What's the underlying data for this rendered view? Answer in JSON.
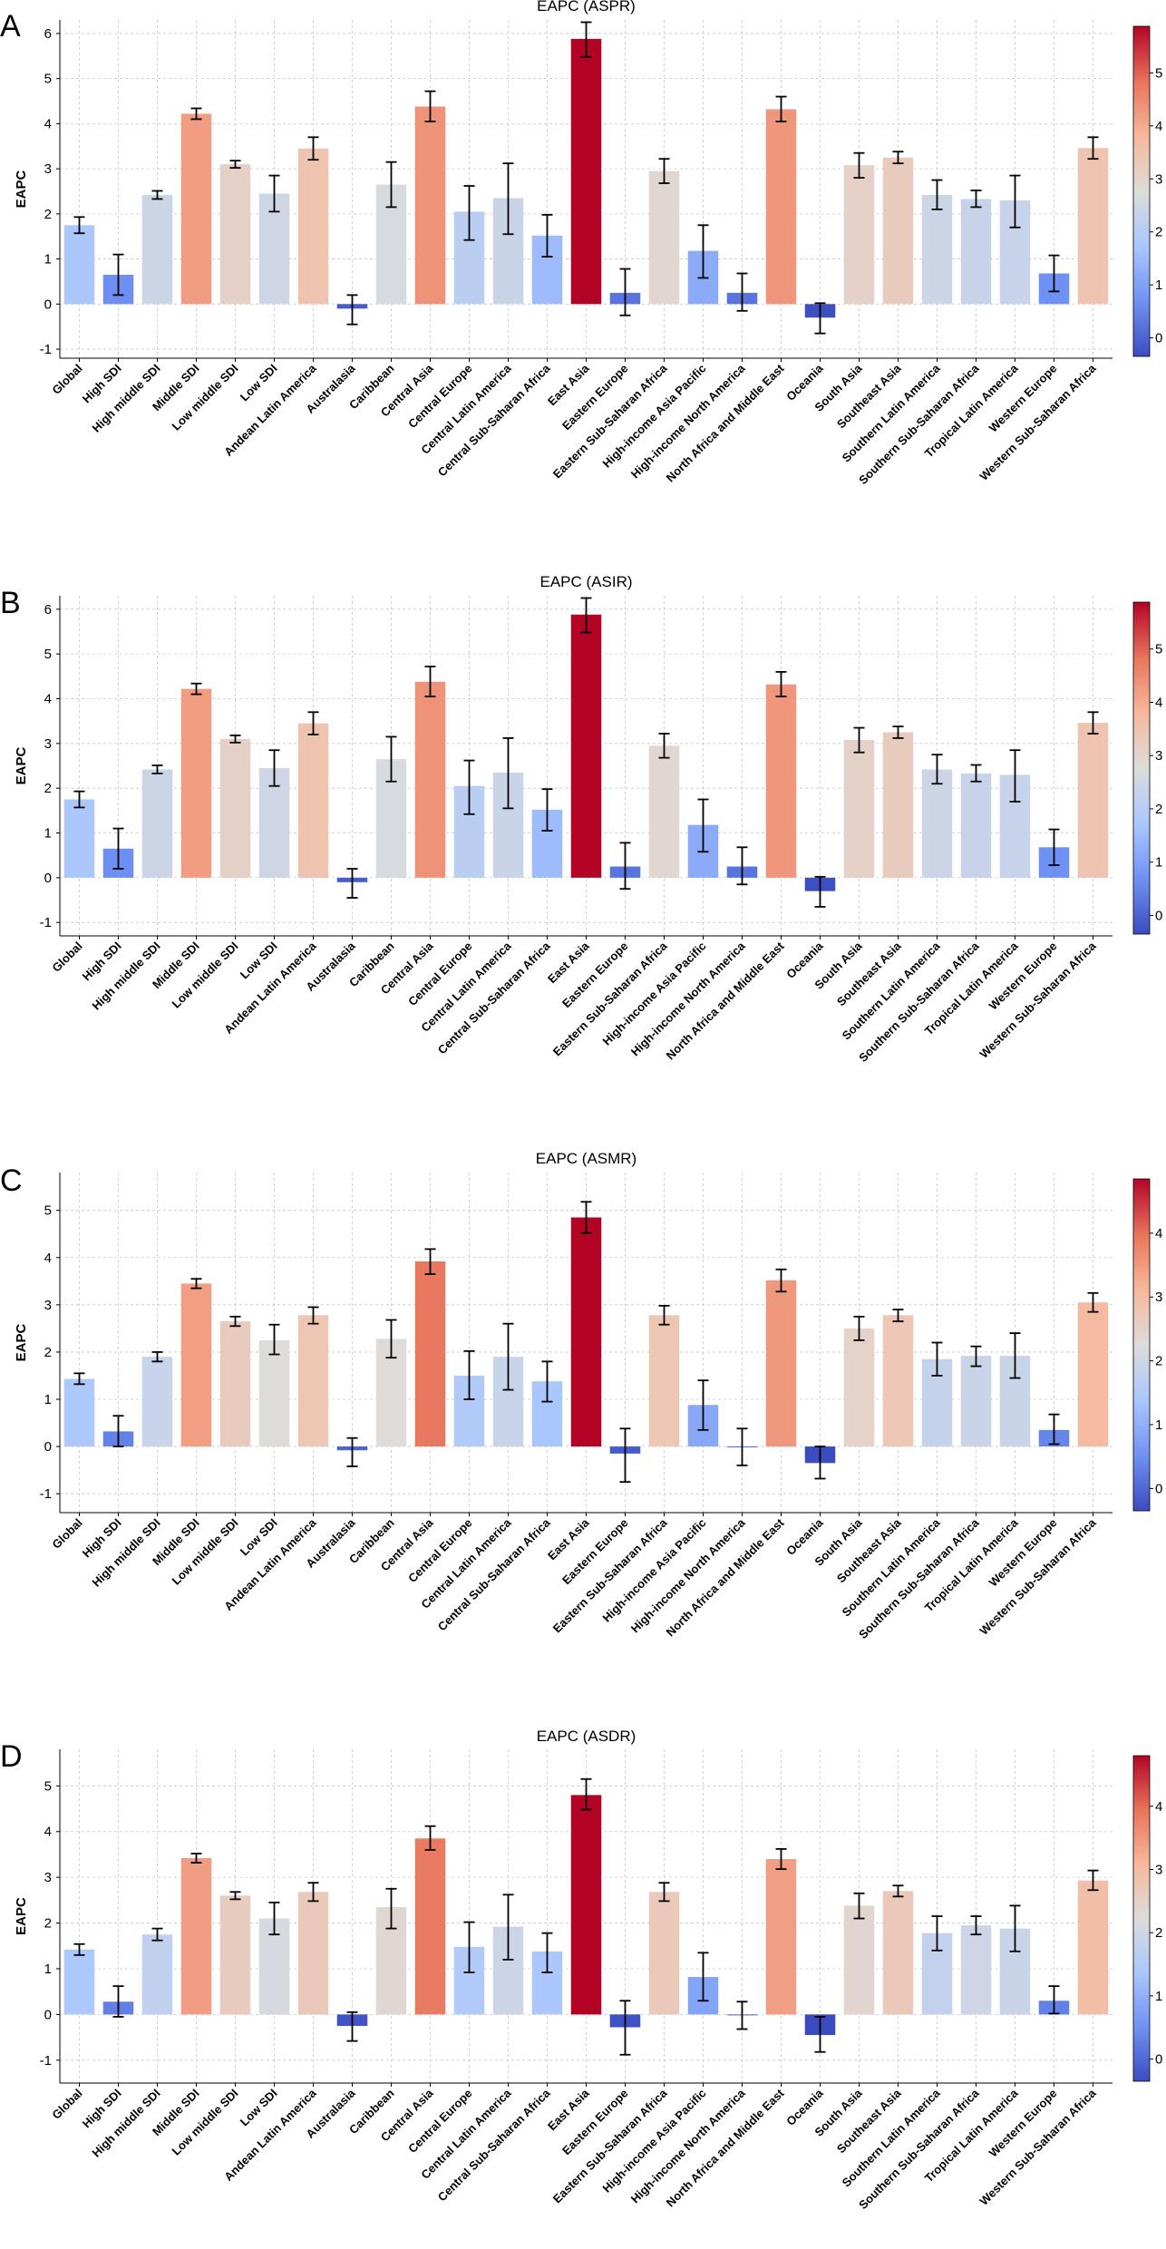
{
  "figure": {
    "panels": [
      "A",
      "B",
      "C",
      "D"
    ]
  },
  "colormap": {
    "stops": [
      "#3b4cc0",
      "#6f92f3",
      "#aac7fd",
      "#dddcdb",
      "#f7b89c",
      "#e7745b",
      "#b40426"
    ]
  },
  "chart_data": [
    {
      "type": "bar",
      "panel_letter": "A",
      "title": "EAPC (ASPR)",
      "xlabel": "",
      "ylabel": "EAPC",
      "ylim": [
        -1.2,
        6.3
      ],
      "yticks": [
        -1,
        0,
        1,
        2,
        3,
        4,
        5,
        6
      ],
      "grid": true,
      "categories": [
        "Global",
        "High SDI",
        "High middle SDI",
        "Middle SDI",
        "Low middle SDI",
        "Low SDI",
        "Andean Latin America",
        "Australasia",
        "Caribbean",
        "Central Asia",
        "Central Europe",
        "Central Latin America",
        "Central Sub-Saharan Africa",
        "East Asia",
        "Eastern Europe",
        "Eastern Sub-Saharan Africa",
        "High-income Asia Pacific",
        "High-income North America",
        "North Africa and Middle East",
        "Oceania",
        "South Asia",
        "Southeast Asia",
        "Southern Latin America",
        "Southern Sub-Saharan Africa",
        "Tropical Latin America",
        "Western Europe",
        "Western Sub-Saharan Africa"
      ],
      "values": [
        1.75,
        0.65,
        2.42,
        4.22,
        3.1,
        2.45,
        3.45,
        -0.1,
        2.65,
        4.38,
        2.05,
        2.35,
        1.52,
        5.88,
        0.25,
        2.95,
        1.18,
        0.25,
        4.32,
        -0.3,
        3.08,
        3.25,
        2.42,
        2.33,
        2.3,
        0.68,
        3.46
      ],
      "lower": [
        1.57,
        0.2,
        2.33,
        4.1,
        3.02,
        2.05,
        3.2,
        -0.45,
        2.15,
        4.05,
        1.42,
        1.55,
        1.05,
        5.48,
        -0.25,
        2.68,
        0.58,
        -0.15,
        4.05,
        -0.65,
        2.8,
        3.12,
        2.1,
        2.15,
        1.7,
        0.28,
        3.22
      ],
      "upper": [
        1.93,
        1.1,
        2.51,
        4.34,
        3.18,
        2.85,
        3.7,
        0.2,
        3.15,
        4.72,
        2.62,
        3.12,
        1.98,
        6.25,
        0.78,
        3.22,
        1.75,
        0.68,
        4.6,
        0.02,
        3.35,
        3.38,
        2.75,
        2.52,
        2.85,
        1.08,
        3.7
      ],
      "colorbar_max": 5.88,
      "colorbar_ticks": [
        0,
        1,
        2,
        3,
        4,
        5
      ],
      "colorbar_tick_labels": [
        "0",
        "1",
        "2",
        "3",
        "4",
        "5"
      ]
    },
    {
      "type": "bar",
      "panel_letter": "B",
      "title": "EAPC (ASIR)",
      "xlabel": "",
      "ylabel": "EAPC",
      "ylim": [
        -1.3,
        6.3
      ],
      "yticks": [
        -1,
        0,
        1,
        2,
        3,
        4,
        5,
        6
      ],
      "grid": true,
      "categories": [
        "Global",
        "High SDI",
        "High middle SDI",
        "Middle SDI",
        "Low middle SDI",
        "Low SDI",
        "Andean Latin America",
        "Australasia",
        "Caribbean",
        "Central Asia",
        "Central Europe",
        "Central Latin America",
        "Central Sub-Saharan Africa",
        "East Asia",
        "Eastern Europe",
        "Eastern Sub-Saharan Africa",
        "High-income Asia Pacific",
        "High-income North America",
        "North Africa and Middle East",
        "Oceania",
        "South Asia",
        "Southeast Asia",
        "Southern Latin America",
        "Southern Sub-Saharan Africa",
        "Tropical Latin America",
        "Western Europe",
        "Western Sub-Saharan Africa"
      ],
      "values": [
        1.75,
        0.65,
        2.42,
        4.22,
        3.1,
        2.45,
        3.45,
        -0.1,
        2.65,
        4.38,
        2.05,
        2.35,
        1.52,
        5.88,
        0.25,
        2.95,
        1.18,
        0.25,
        4.32,
        -0.3,
        3.08,
        3.25,
        2.42,
        2.33,
        2.3,
        0.68,
        3.46
      ],
      "lower": [
        1.57,
        0.2,
        2.33,
        4.1,
        3.02,
        2.05,
        3.2,
        -0.45,
        2.15,
        4.05,
        1.42,
        1.55,
        1.05,
        5.48,
        -0.25,
        2.68,
        0.58,
        -0.15,
        4.05,
        -0.65,
        2.8,
        3.12,
        2.1,
        2.15,
        1.7,
        0.28,
        3.22
      ],
      "upper": [
        1.93,
        1.1,
        2.51,
        4.34,
        3.18,
        2.85,
        3.7,
        0.2,
        3.15,
        4.72,
        2.62,
        3.12,
        1.98,
        6.25,
        0.78,
        3.22,
        1.75,
        0.68,
        4.6,
        0.02,
        3.35,
        3.38,
        2.75,
        2.52,
        2.85,
        1.08,
        3.7
      ],
      "colorbar_max": 5.88,
      "colorbar_ticks": [
        0,
        1,
        2,
        3,
        4,
        5
      ],
      "colorbar_tick_labels": [
        "0",
        "1",
        "2",
        "3",
        "4",
        "5"
      ]
    },
    {
      "type": "bar",
      "panel_letter": "C",
      "title": "EAPC (ASMR)",
      "xlabel": "",
      "ylabel": "EAPC",
      "ylim": [
        -1.4,
        5.8
      ],
      "yticks": [
        -1,
        0,
        1,
        2,
        3,
        4,
        5
      ],
      "grid": true,
      "categories": [
        "Global",
        "High SDI",
        "High middle SDI",
        "Middle SDI",
        "Low middle SDI",
        "Low SDI",
        "Andean Latin America",
        "Australasia",
        "Caribbean",
        "Central Asia",
        "Central Europe",
        "Central Latin America",
        "Central Sub-Saharan Africa",
        "East Asia",
        "Eastern Europe",
        "Eastern Sub-Saharan Africa",
        "High-income Asia Pacific",
        "High-income North America",
        "North Africa and Middle East",
        "Oceania",
        "South Asia",
        "Southeast Asia",
        "Southern Latin America",
        "Southern Sub-Saharan Africa",
        "Tropical Latin America",
        "Western Europe",
        "Western Sub-Saharan Africa"
      ],
      "values": [
        1.43,
        0.32,
        1.9,
        3.45,
        2.65,
        2.25,
        2.78,
        -0.08,
        2.28,
        3.92,
        1.5,
        1.9,
        1.38,
        4.85,
        -0.15,
        2.78,
        0.88,
        0.0,
        3.52,
        -0.35,
        2.5,
        2.78,
        1.85,
        1.92,
        1.92,
        0.35,
        3.05
      ],
      "lower": [
        1.32,
        0.0,
        1.8,
        3.35,
        2.55,
        1.95,
        2.6,
        -0.42,
        1.88,
        3.65,
        1.0,
        1.2,
        0.95,
        4.52,
        -0.75,
        2.58,
        0.35,
        -0.4,
        3.28,
        -0.68,
        2.25,
        2.65,
        1.5,
        1.7,
        1.45,
        0.05,
        2.85
      ],
      "upper": [
        1.55,
        0.65,
        2.0,
        3.55,
        2.75,
        2.58,
        2.95,
        0.18,
        2.68,
        4.18,
        2.02,
        2.6,
        1.8,
        5.18,
        0.38,
        2.98,
        1.4,
        0.38,
        3.75,
        0.0,
        2.75,
        2.9,
        2.2,
        2.12,
        2.4,
        0.68,
        3.25
      ],
      "colorbar_max": 4.85,
      "colorbar_ticks": [
        0,
        1,
        2,
        3,
        4
      ],
      "colorbar_tick_labels": [
        "0",
        "1",
        "2",
        "3",
        "4"
      ]
    },
    {
      "type": "bar",
      "panel_letter": "D",
      "title": "EAPC (ASDR)",
      "xlabel": "",
      "ylabel": "EAPC",
      "ylim": [
        -1.5,
        5.8
      ],
      "yticks": [
        -1,
        0,
        1,
        2,
        3,
        4,
        5
      ],
      "grid": true,
      "categories": [
        "Global",
        "High SDI",
        "High middle SDI",
        "Middle SDI",
        "Low middle SDI",
        "Low SDI",
        "Andean Latin America",
        "Australasia",
        "Caribbean",
        "Central Asia",
        "Central Europe",
        "Central Latin America",
        "Central Sub-Saharan Africa",
        "East Asia",
        "Eastern Europe",
        "Eastern Sub-Saharan Africa",
        "High-income Asia Pacific",
        "High-income North America",
        "North Africa and Middle East",
        "Oceania",
        "South Asia",
        "Southeast Asia",
        "Southern Latin America",
        "Southern Sub-Saharan Africa",
        "Tropical Latin America",
        "Western Europe",
        "Western Sub-Saharan Africa"
      ],
      "values": [
        1.42,
        0.28,
        1.75,
        3.42,
        2.6,
        2.1,
        2.68,
        -0.25,
        2.35,
        3.85,
        1.48,
        1.92,
        1.38,
        4.8,
        -0.28,
        2.68,
        0.82,
        -0.02,
        3.4,
        -0.45,
        2.38,
        2.7,
        1.78,
        1.95,
        1.88,
        0.3,
        2.93
      ],
      "lower": [
        1.3,
        -0.05,
        1.62,
        3.32,
        2.52,
        1.75,
        2.48,
        -0.58,
        1.88,
        3.6,
        0.92,
        1.2,
        0.92,
        4.48,
        -0.88,
        2.48,
        0.3,
        -0.32,
        3.18,
        -0.82,
        2.1,
        2.58,
        1.4,
        1.75,
        1.38,
        0.02,
        2.72
      ],
      "upper": [
        1.54,
        0.62,
        1.88,
        3.52,
        2.68,
        2.45,
        2.88,
        0.05,
        2.75,
        4.12,
        2.02,
        2.62,
        1.78,
        5.15,
        0.3,
        2.88,
        1.35,
        0.28,
        3.62,
        -0.05,
        2.65,
        2.82,
        2.15,
        2.15,
        2.38,
        0.62,
        3.15
      ],
      "colorbar_max": 4.8,
      "colorbar_ticks": [
        0,
        1,
        2,
        3,
        4
      ],
      "colorbar_tick_labels": [
        "0",
        "1",
        "2",
        "3",
        "4"
      ]
    }
  ]
}
